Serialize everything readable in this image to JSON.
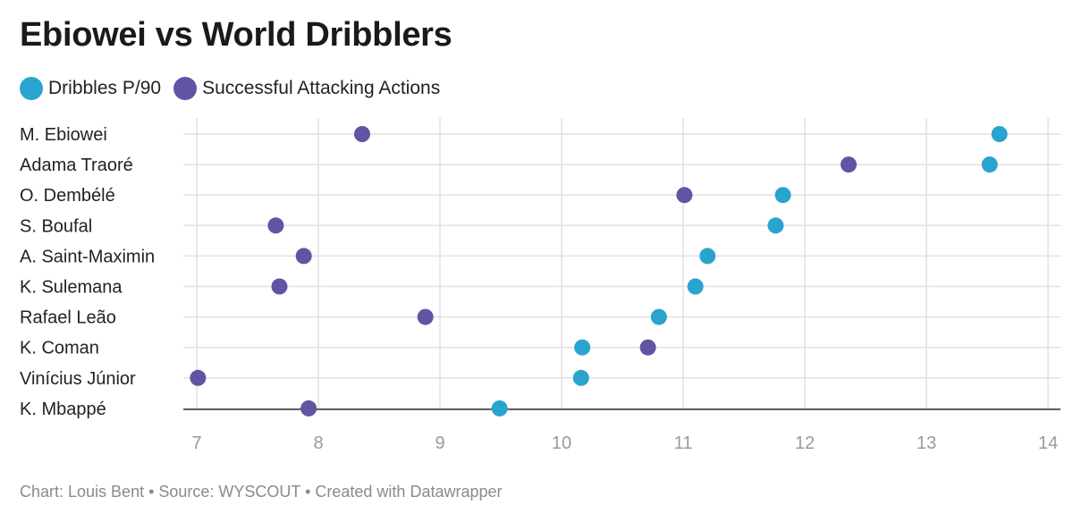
{
  "title": "Ebiowei vs World Dribblers",
  "footer": "Chart: Louis Bent • Source: WYSCOUT • Created with Datawrapper",
  "colors": {
    "dribbles": "#29a4cf",
    "saa": "#6054a3",
    "grid": "#e2e2e2",
    "text": "#1a1a1a",
    "muted": "#8a8a8a"
  },
  "chart_data": {
    "type": "scatter",
    "xlim": [
      7,
      14
    ],
    "xticks": [
      7,
      8,
      9,
      10,
      11,
      12,
      13,
      14
    ],
    "grid": true,
    "legend_position": "top-left",
    "categories": [
      "M. Ebiowei",
      "Adama Traoré",
      "O. Dembélé",
      "S. Boufal",
      "A. Saint-Maximin",
      "K. Sulemana",
      "Rafael Leão",
      "K. Coman",
      "Vinícius Júnior",
      "K. Mbappé"
    ],
    "series": [
      {
        "name": "Dribbles P/90",
        "color": "#29a4cf",
        "values": [
          13.6,
          13.52,
          11.82,
          11.76,
          11.2,
          11.1,
          10.8,
          10.17,
          10.16,
          9.49
        ]
      },
      {
        "name": "Successful Attacking Actions",
        "color": "#6054a3",
        "values": [
          8.36,
          12.36,
          11.01,
          7.65,
          7.88,
          7.68,
          8.88,
          10.71,
          7.01,
          7.92
        ]
      }
    ]
  }
}
